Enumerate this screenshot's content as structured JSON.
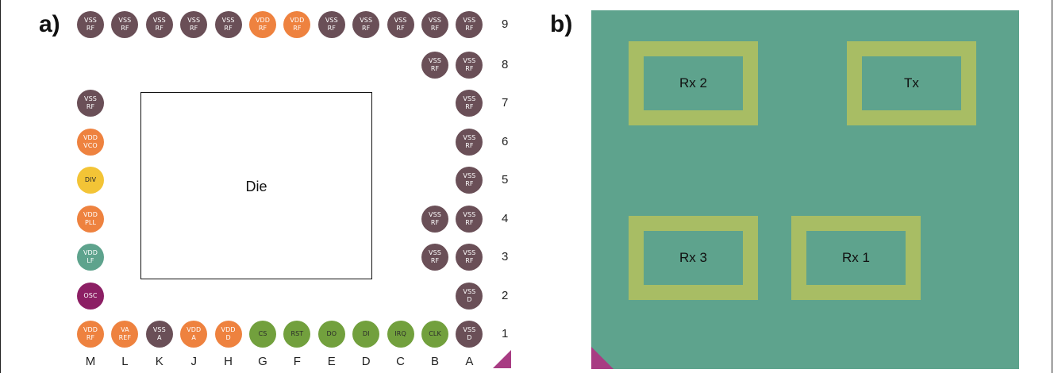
{
  "panels": {
    "a": "a)",
    "b": "b)"
  },
  "colors": {
    "vss": "#6a4f57",
    "vdd": "#ee823f",
    "div": "#f3c436",
    "lf": "#5ea38d",
    "osc": "#8c1f64",
    "digital": "#72a03d",
    "marker": "#a83c83",
    "board": "#5ea38d",
    "antenna": "#a8bd64"
  },
  "columns": [
    "M",
    "L",
    "K",
    "J",
    "H",
    "G",
    "F",
    "E",
    "D",
    "C",
    "B",
    "A"
  ],
  "rows": [
    "9",
    "8",
    "7",
    "6",
    "5",
    "4",
    "3",
    "2",
    "1"
  ],
  "die_label": "Die",
  "pads": [
    {
      "col": "M",
      "row": "9",
      "text": "VSS\nRF",
      "kind": "vss"
    },
    {
      "col": "L",
      "row": "9",
      "text": "VSS\nRF",
      "kind": "vss"
    },
    {
      "col": "K",
      "row": "9",
      "text": "VSS\nRF",
      "kind": "vss"
    },
    {
      "col": "J",
      "row": "9",
      "text": "VSS\nRF",
      "kind": "vss"
    },
    {
      "col": "H",
      "row": "9",
      "text": "VSS\nRF",
      "kind": "vss"
    },
    {
      "col": "G",
      "row": "9",
      "text": "VDD\nRF",
      "kind": "vdd"
    },
    {
      "col": "F",
      "row": "9",
      "text": "VDD\nRF",
      "kind": "vdd"
    },
    {
      "col": "E",
      "row": "9",
      "text": "VSS\nRF",
      "kind": "vss"
    },
    {
      "col": "D",
      "row": "9",
      "text": "VSS\nRF",
      "kind": "vss"
    },
    {
      "col": "C",
      "row": "9",
      "text": "VSS\nRF",
      "kind": "vss"
    },
    {
      "col": "B",
      "row": "9",
      "text": "VSS\nRF",
      "kind": "vss"
    },
    {
      "col": "A",
      "row": "9",
      "text": "VSS\nRF",
      "kind": "vss"
    },
    {
      "col": "B",
      "row": "8",
      "text": "VSS\nRF",
      "kind": "vss"
    },
    {
      "col": "A",
      "row": "8",
      "text": "VSS\nRF",
      "kind": "vss"
    },
    {
      "col": "M",
      "row": "7",
      "text": "VSS\nRF",
      "kind": "vss"
    },
    {
      "col": "A",
      "row": "7",
      "text": "VSS\nRF",
      "kind": "vss"
    },
    {
      "col": "M",
      "row": "6",
      "text": "VDD\nVCO",
      "kind": "vdd"
    },
    {
      "col": "A",
      "row": "6",
      "text": "VSS\nRF",
      "kind": "vss"
    },
    {
      "col": "M",
      "row": "5",
      "text": "DIV",
      "kind": "div"
    },
    {
      "col": "A",
      "row": "5",
      "text": "VSS\nRF",
      "kind": "vss"
    },
    {
      "col": "M",
      "row": "4",
      "text": "VDD\nPLL",
      "kind": "vdd"
    },
    {
      "col": "B",
      "row": "4",
      "text": "VSS\nRF",
      "kind": "vss"
    },
    {
      "col": "A",
      "row": "4",
      "text": "VSS\nRF",
      "kind": "vss"
    },
    {
      "col": "M",
      "row": "3",
      "text": "VDD\nLF",
      "kind": "lf"
    },
    {
      "col": "B",
      "row": "3",
      "text": "VSS\nRF",
      "kind": "vss"
    },
    {
      "col": "A",
      "row": "3",
      "text": "VSS\nRF",
      "kind": "vss"
    },
    {
      "col": "M",
      "row": "2",
      "text": "OSC",
      "kind": "osc"
    },
    {
      "col": "A",
      "row": "2",
      "text": "VSS\nD",
      "kind": "vss"
    },
    {
      "col": "M",
      "row": "1",
      "text": "VDD\nRF",
      "kind": "vdd"
    },
    {
      "col": "L",
      "row": "1",
      "text": "VA\nREF",
      "kind": "vdd"
    },
    {
      "col": "K",
      "row": "1",
      "text": "VSS\nA",
      "kind": "vss"
    },
    {
      "col": "J",
      "row": "1",
      "text": "VDD\nA",
      "kind": "vdd"
    },
    {
      "col": "H",
      "row": "1",
      "text": "VDD\nD",
      "kind": "vdd"
    },
    {
      "col": "G",
      "row": "1",
      "text": "CS",
      "kind": "digital"
    },
    {
      "col": "F",
      "row": "1",
      "text": "RST",
      "kind": "digital"
    },
    {
      "col": "E",
      "row": "1",
      "text": "DO",
      "kind": "digital"
    },
    {
      "col": "D",
      "row": "1",
      "text": "DI",
      "kind": "digital"
    },
    {
      "col": "C",
      "row": "1",
      "text": "IRQ",
      "kind": "digital"
    },
    {
      "col": "B",
      "row": "1",
      "text": "CLK",
      "kind": "digital"
    },
    {
      "col": "A",
      "row": "1",
      "text": "VSS\nD",
      "kind": "vss"
    }
  ],
  "antennas": {
    "rx2": "Rx 2",
    "tx": "Tx",
    "rx3": "Rx 3",
    "rx1": "Rx 1"
  }
}
